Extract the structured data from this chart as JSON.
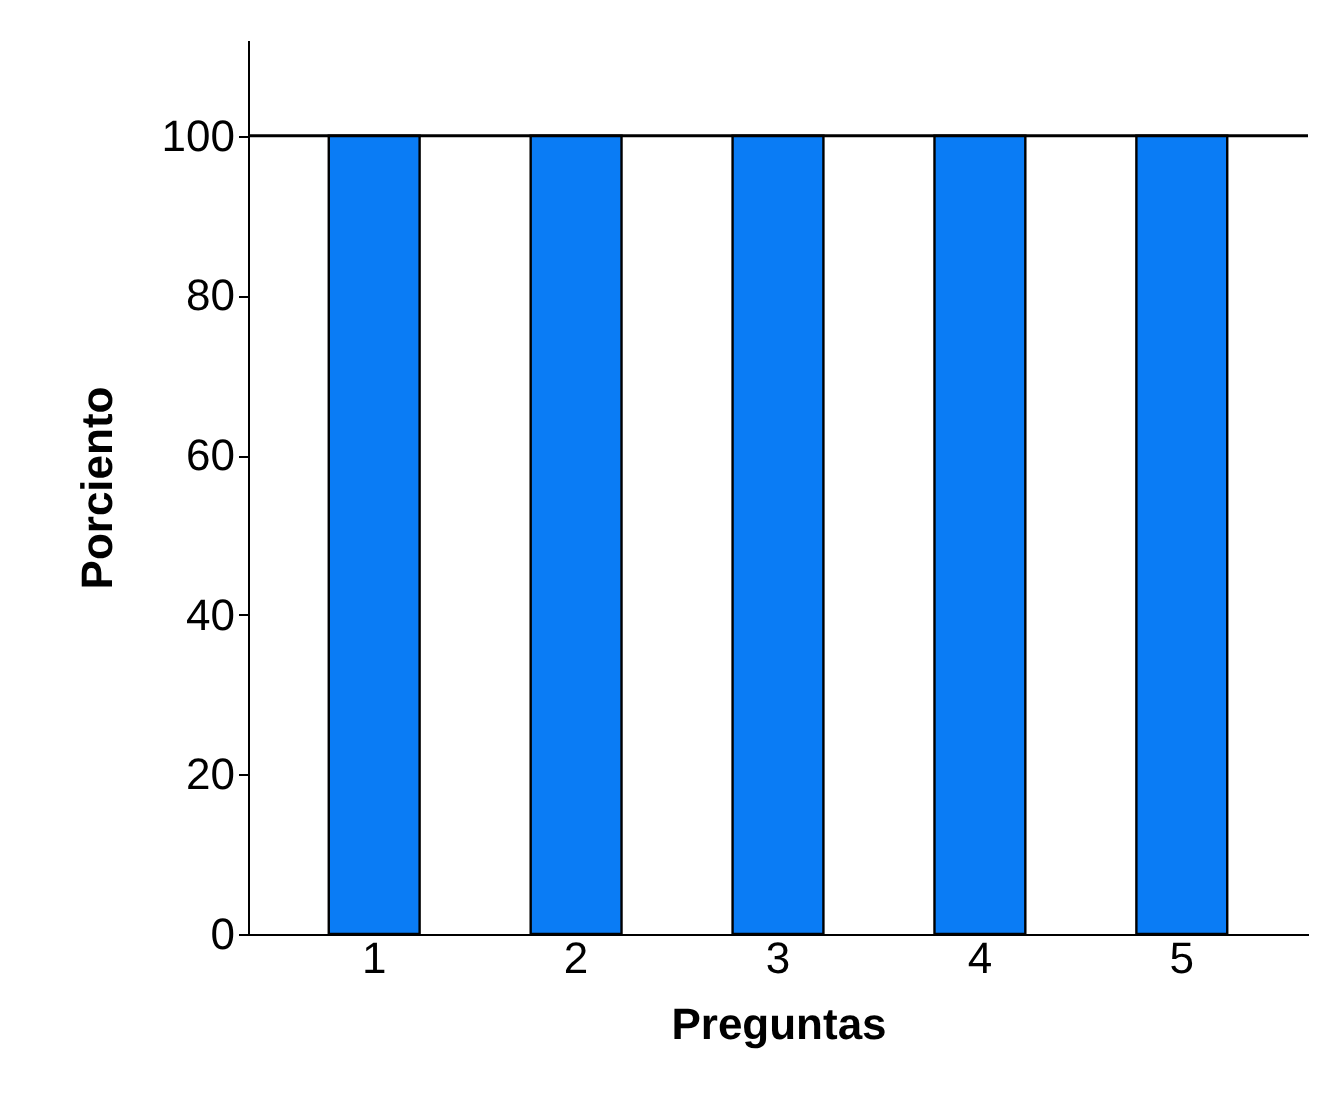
{
  "chart_data": {
    "type": "bar",
    "xlabel": "Preguntas",
    "ylabel": "Porciento",
    "categories": [
      "1",
      "2",
      "3",
      "4",
      "5"
    ],
    "values": [
      100,
      100,
      100,
      100,
      100
    ],
    "color": "#0a7cf5",
    "ylim": [
      0,
      112
    ],
    "yticks": [
      0,
      20,
      40,
      60,
      80,
      100
    ],
    "ref_lines": [
      {
        "axis": "y",
        "value": 100
      }
    ]
  }
}
